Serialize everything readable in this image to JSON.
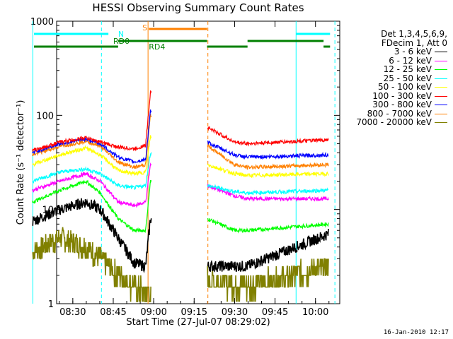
{
  "page": {
    "footer_date": "16-Jan-2010 12:17"
  },
  "chart_data": {
    "type": "line",
    "title": "HESSI Observing Summary Count Rates",
    "xlabel": "Start Time (27-Jul-07 08:29:02)",
    "ylabel": "Count Rate (s⁻¹ detector⁻¹)",
    "yscale": "log",
    "xlim": [
      "08:24",
      "10:09"
    ],
    "ylim": [
      1,
      1000
    ],
    "x_ticks": [
      "08:30",
      "08:45",
      "09:00",
      "09:15",
      "09:30",
      "09:45",
      "10:00"
    ],
    "y_ticks": [
      "1",
      "10",
      "100",
      "1000"
    ],
    "legend_header": [
      "Det 1,3,4,5,6,9,",
      "FDecim 1, Att 0"
    ],
    "legend_position": "right",
    "series": [
      {
        "name": "3 - 6 keV",
        "color": "#000000",
        "values": [
          [
            8.25,
            7.5
          ],
          [
            8.42,
            10
          ],
          [
            8.58,
            12
          ],
          [
            8.67,
            10
          ],
          [
            8.78,
            5
          ],
          [
            8.88,
            2.7
          ],
          [
            8.95,
            2.5
          ],
          [
            8.98,
            8
          ],
          [
            9.33,
            2.5
          ],
          [
            9.58,
            2.5
          ],
          [
            10.08,
            5.5
          ]
        ]
      },
      {
        "name": "6 - 12 keV",
        "color": "#ff00ff",
        "values": [
          [
            8.25,
            16
          ],
          [
            8.42,
            20
          ],
          [
            8.58,
            24
          ],
          [
            8.67,
            20
          ],
          [
            8.78,
            12
          ],
          [
            8.88,
            11
          ],
          [
            8.95,
            12
          ],
          [
            8.98,
            30
          ],
          [
            9.33,
            18
          ],
          [
            9.5,
            14
          ],
          [
            9.58,
            13
          ],
          [
            10.08,
            13
          ]
        ]
      },
      {
        "name": "12 - 25 keV",
        "color": "#00ff00",
        "values": [
          [
            8.25,
            12
          ],
          [
            8.42,
            16
          ],
          [
            8.58,
            20
          ],
          [
            8.67,
            15
          ],
          [
            8.78,
            8
          ],
          [
            8.88,
            6
          ],
          [
            8.95,
            6
          ],
          [
            8.98,
            20
          ],
          [
            9.33,
            8
          ],
          [
            9.5,
            6
          ],
          [
            9.58,
            6
          ],
          [
            10.08,
            7
          ]
        ]
      },
      {
        "name": "25 - 50 keV",
        "color": "#00ffff",
        "values": [
          [
            8.25,
            20
          ],
          [
            8.42,
            25
          ],
          [
            8.58,
            27
          ],
          [
            8.67,
            24
          ],
          [
            8.78,
            18
          ],
          [
            8.88,
            17
          ],
          [
            8.95,
            18
          ],
          [
            8.98,
            40
          ],
          [
            9.33,
            18
          ],
          [
            9.5,
            15.5
          ],
          [
            9.58,
            15
          ],
          [
            10.08,
            16
          ]
        ]
      },
      {
        "name": "50 - 100 keV",
        "color": "#ffff00",
        "values": [
          [
            8.25,
            30
          ],
          [
            8.42,
            38
          ],
          [
            8.58,
            45
          ],
          [
            8.67,
            38
          ],
          [
            8.78,
            26
          ],
          [
            8.88,
            24
          ],
          [
            8.95,
            25
          ],
          [
            8.98,
            60
          ],
          [
            9.33,
            30
          ],
          [
            9.5,
            24
          ],
          [
            9.58,
            23
          ],
          [
            10.08,
            24
          ]
        ]
      },
      {
        "name": "100 - 300 keV",
        "color": "#ff0000",
        "values": [
          [
            8.25,
            42
          ],
          [
            8.42,
            52
          ],
          [
            8.58,
            58
          ],
          [
            8.67,
            52
          ],
          [
            8.78,
            46
          ],
          [
            8.88,
            44
          ],
          [
            8.95,
            48
          ],
          [
            8.98,
            180
          ],
          [
            9.33,
            75
          ],
          [
            9.5,
            52
          ],
          [
            9.58,
            50
          ],
          [
            10.08,
            55
          ]
        ]
      },
      {
        "name": "300 - 800 keV",
        "color": "#0000ff",
        "values": [
          [
            8.25,
            40
          ],
          [
            8.42,
            50
          ],
          [
            8.58,
            56
          ],
          [
            8.67,
            50
          ],
          [
            8.78,
            36
          ],
          [
            8.88,
            32
          ],
          [
            8.95,
            34
          ],
          [
            8.98,
            110
          ],
          [
            9.33,
            52
          ],
          [
            9.5,
            38
          ],
          [
            9.58,
            36
          ],
          [
            10.08,
            38
          ]
        ]
      },
      {
        "name": "800 - 7000 keV",
        "color": "#ff8000",
        "values": [
          [
            8.25,
            38
          ],
          [
            8.42,
            47
          ],
          [
            8.58,
            53
          ],
          [
            8.67,
            47
          ],
          [
            8.78,
            32
          ],
          [
            8.88,
            28
          ],
          [
            8.95,
            30
          ],
          [
            8.98,
            100
          ],
          [
            9.33,
            48
          ],
          [
            9.5,
            30
          ],
          [
            9.58,
            28
          ],
          [
            10.08,
            30
          ]
        ]
      },
      {
        "name": "7000 - 20000 keV",
        "color": "#808000",
        "values": [
          [
            8.25,
            3.5
          ],
          [
            8.42,
            5
          ],
          [
            8.58,
            4
          ],
          [
            8.67,
            3
          ],
          [
            8.78,
            2
          ],
          [
            8.88,
            1.5
          ],
          [
            8.95,
            1.3
          ],
          [
            9.33,
            1.8
          ],
          [
            9.58,
            1.5
          ],
          [
            10.08,
            2.5
          ]
        ]
      }
    ],
    "annotations": [
      {
        "text": "N",
        "color": "#00ffff"
      },
      {
        "text": "S",
        "color": "#ff8000"
      },
      {
        "text": "RD0",
        "color": "#008000"
      },
      {
        "text": "RD4",
        "color": "#008000"
      }
    ]
  }
}
